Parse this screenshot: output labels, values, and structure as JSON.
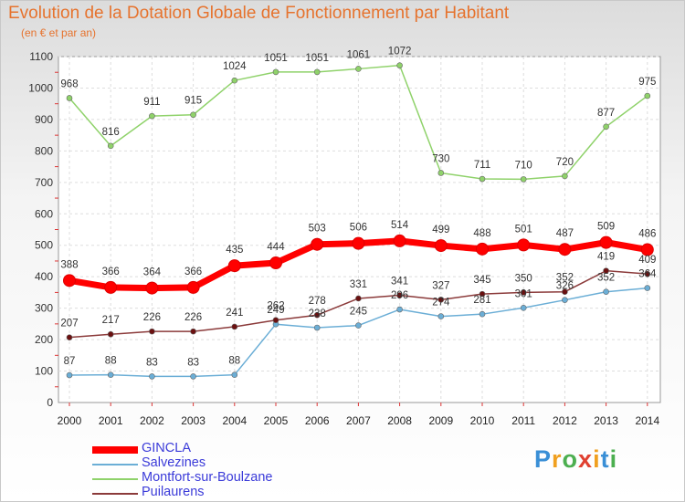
{
  "chart_data": {
    "type": "line",
    "title": "Evolution de la Dotation Globale de Fonctionnement par Habitant",
    "subtitle": "(en € et par an)",
    "x": [
      "2000",
      "2001",
      "2002",
      "2003",
      "2004",
      "2005",
      "2006",
      "2007",
      "2008",
      "2009",
      "2010",
      "2011",
      "2012",
      "2013",
      "2014"
    ],
    "ylim": [
      0,
      1100
    ],
    "yticks": [
      "0",
      "100",
      "200",
      "300",
      "400",
      "500",
      "600",
      "700",
      "800",
      "900",
      "1000",
      "1100"
    ],
    "grid": true,
    "legend_position": "bottom-left",
    "series": [
      {
        "name": "GINCLA",
        "color": "#ff0000",
        "values": [
          388,
          366,
          364,
          366,
          435,
          444,
          503,
          506,
          514,
          499,
          488,
          501,
          487,
          509,
          486
        ],
        "labels": [
          "388",
          "366",
          "364",
          "366",
          "435",
          "444",
          "503",
          "506",
          "514",
          "499",
          "488",
          "501",
          "487",
          "509",
          "486"
        ]
      },
      {
        "name": "Salvezines",
        "color": "#6baed6",
        "values": [
          87,
          88,
          83,
          83,
          88,
          249,
          238,
          245,
          296,
          274,
          281,
          301,
          326,
          352,
          364
        ],
        "labels": [
          "87",
          "88",
          "83",
          "83",
          "88",
          "249",
          "238",
          "245",
          "296",
          "274",
          "281",
          "301",
          "326",
          "352",
          "364"
        ]
      },
      {
        "name": "Montfort-sur-Boulzane",
        "color": "#8fd26a",
        "values": [
          968,
          816,
          911,
          915,
          1024,
          1051,
          1051,
          1061,
          1072,
          730,
          711,
          710,
          720,
          877,
          975
        ],
        "labels": [
          "968",
          "816",
          "911",
          "915",
          "1024",
          "1051",
          "1051",
          "1061",
          "1072",
          "730",
          "711",
          "710",
          "720",
          "877",
          "975"
        ]
      },
      {
        "name": "Puilaurens",
        "color": "#8b3a3a",
        "values": [
          207,
          217,
          226,
          226,
          241,
          262,
          278,
          331,
          341,
          327,
          345,
          350,
          352,
          419,
          409
        ],
        "labels": [
          "207",
          "217",
          "226",
          "226",
          "241",
          "262",
          "278",
          "331",
          "341",
          "327",
          "345",
          "350",
          "352",
          "419",
          "409"
        ]
      }
    ]
  },
  "logo": {
    "text": "Proxiti",
    "letters": [
      "P",
      "r",
      "o",
      "x",
      "i",
      "t",
      "i"
    ],
    "colors": [
      "#3a8fd6",
      "#f0a020",
      "#4caf50",
      "#e04030",
      "#f0a020",
      "#3a8fd6",
      "#4caf50"
    ]
  }
}
